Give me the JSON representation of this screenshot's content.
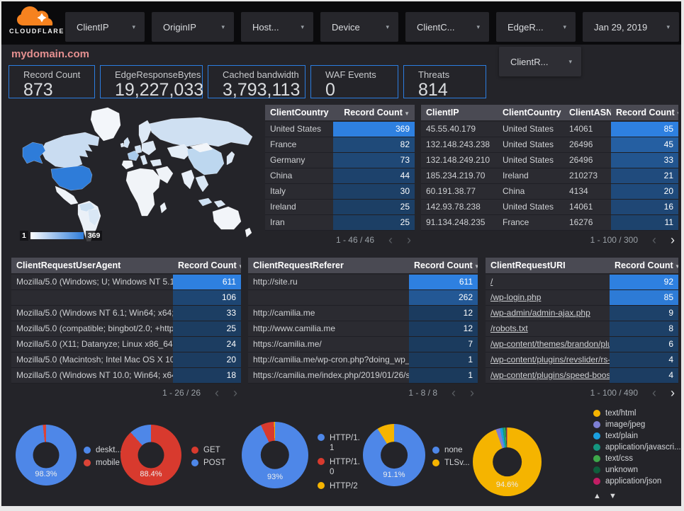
{
  "header": {
    "logo_text": "CLOUDFLARE",
    "filters": [
      "ClientIP",
      "OriginIP",
      "Host...",
      "Device",
      "ClientC...",
      "EdgeR...",
      "Jan 29, 2019"
    ],
    "filters_row2": [
      "ClientR..."
    ]
  },
  "page_title": "mydomain.com",
  "scorecards": [
    {
      "label": "Record Count",
      "value": "873"
    },
    {
      "label": "EdgeResponseBytes",
      "value": "19,227,033"
    },
    {
      "label": "Cached bandwidth",
      "value": "3,793,113"
    },
    {
      "label": "WAF Events",
      "value": "0"
    },
    {
      "label": "Threats",
      "value": "814"
    }
  ],
  "map": {
    "legend_min": "1",
    "legend_max": "369"
  },
  "tables": {
    "client_country": {
      "columns": [
        "ClientCountry",
        "Record Count"
      ],
      "rows": [
        [
          "United States",
          369
        ],
        [
          "France",
          82
        ],
        [
          "Germany",
          73
        ],
        [
          "China",
          44
        ],
        [
          "Italy",
          30
        ],
        [
          "Ireland",
          25
        ],
        [
          "Iran",
          25
        ]
      ],
      "pagination": "1 - 46 / 46",
      "prev_active": false,
      "next_active": false
    },
    "client_ip": {
      "columns": [
        "ClientIP",
        "ClientCountry",
        "ClientASN",
        "Record Count"
      ],
      "rows": [
        [
          "45.55.40.179",
          "United States",
          "14061",
          85
        ],
        [
          "132.148.243.238",
          "United States",
          "26496",
          45
        ],
        [
          "132.148.249.210",
          "United States",
          "26496",
          33
        ],
        [
          "185.234.219.70",
          "Ireland",
          "210273",
          21
        ],
        [
          "60.191.38.77",
          "China",
          "4134",
          20
        ],
        [
          "142.93.78.238",
          "United States",
          "14061",
          16
        ],
        [
          "91.134.248.235",
          "France",
          "16276",
          11
        ]
      ],
      "pagination": "1 - 100 / 300",
      "prev_active": false,
      "next_active": true
    },
    "user_agent": {
      "columns": [
        "ClientRequestUserAgent",
        "Record Count"
      ],
      "rows": [
        [
          "Mozilla/5.0 (Windows; U; Windows NT 5.1; en-U...",
          611
        ],
        [
          "",
          106
        ],
        [
          "Mozilla/5.0 (Windows NT 6.1; Win64; x64; rv:64...",
          33
        ],
        [
          "Mozilla/5.0 (compatible; bingbot/2.0; +http://w...",
          25
        ],
        [
          "Mozilla/5.0 (X11; Datanyze; Linux x86_64) Appl...",
          24
        ],
        [
          "Mozilla/5.0 (Macintosh; Intel Mac OS X 10.11; r...",
          20
        ],
        [
          "Mozilla/5.0 (Windows NT 10.0; Win64; x64) App...",
          18
        ]
      ],
      "pagination": "1 - 26 / 26",
      "prev_active": false,
      "next_active": false
    },
    "referer": {
      "columns": [
        "ClientRequestReferer",
        "Record Count"
      ],
      "rows": [
        [
          "http://site.ru",
          611
        ],
        [
          "",
          262
        ],
        [
          "http://camilia.me",
          12
        ],
        [
          "http://www.camilia.me",
          12
        ],
        [
          "https://camilia.me/",
          7
        ],
        [
          "http://camilia.me/wp-cron.php?doing_wp_cron...",
          1
        ],
        [
          "https://camilia.me/index.php/2019/01/26/stor...",
          1
        ]
      ],
      "pagination": "1 - 8 / 8",
      "prev_active": false,
      "next_active": false
    },
    "uri": {
      "columns": [
        "ClientRequestURI",
        "Record Count"
      ],
      "dims_are_links": true,
      "rows": [
        [
          "/",
          92
        ],
        [
          "/wp-login.php",
          85
        ],
        [
          "/wp-admin/admin-ajax.php",
          9
        ],
        [
          "/robots.txt",
          8
        ],
        [
          "/wp-content/themes/brandon/plu...",
          6
        ],
        [
          "/wp-content/plugins/revslider/rs-p...",
          4
        ],
        [
          "/wp-content/plugins/speed-booste...",
          4
        ]
      ],
      "pagination": "1 - 100 / 490",
      "prev_active": false,
      "next_active": true
    }
  },
  "chart_data": [
    {
      "type": "pie",
      "labels": [
        "deskt...",
        "mobile"
      ],
      "values": [
        98.3,
        1.7
      ],
      "colors": [
        "#4e87e8",
        "#db4437"
      ],
      "center_label": "98.3%",
      "legend_position": "right"
    },
    {
      "type": "pie",
      "labels": [
        "GET",
        "POST"
      ],
      "values": [
        88.4,
        11.6
      ],
      "colors": [
        "#d83a2e",
        "#4e87e8"
      ],
      "center_label": "88.4%",
      "legend_position": "right"
    },
    {
      "type": "pie",
      "labels": [
        "HTTP/1.1",
        "HTTP/1.0",
        "HTTP/2"
      ],
      "values": [
        93,
        6.5,
        0.5
      ],
      "colors": [
        "#4e87e8",
        "#d83a2e",
        "#f5b400"
      ],
      "center_label": "93%",
      "legend_position": "right"
    },
    {
      "type": "pie",
      "labels": [
        "none",
        "TLSv..."
      ],
      "values": [
        91.1,
        8.9
      ],
      "colors": [
        "#4e87e8",
        "#f5b400"
      ],
      "center_label": "91.1%",
      "legend_position": "right"
    },
    {
      "type": "pie",
      "labels": [
        "text/html",
        "image/jpeg",
        "text/plain",
        "application/javascri...",
        "text/css",
        "unknown",
        "application/json"
      ],
      "values": [
        94.6,
        2.0,
        1.2,
        0.8,
        0.6,
        0.4,
        0.4
      ],
      "colors": [
        "#f5b400",
        "#7d7fd4",
        "#1a9fe0",
        "#14957f",
        "#3ea84a",
        "#0e5f3c",
        "#c21d64"
      ],
      "center_label": "94.6%",
      "legend_position": "right",
      "legend_scroll": true
    },
    {
      "type": "choropleth",
      "metric": "Record Count",
      "range": [
        1,
        369
      ]
    }
  ]
}
